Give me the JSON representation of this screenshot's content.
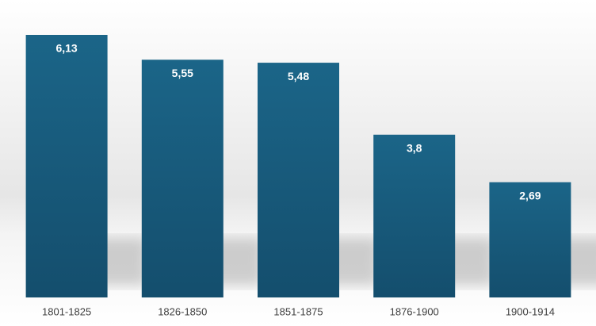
{
  "chart_data": {
    "type": "bar",
    "categories": [
      "1801-1825",
      "1826-1850",
      "1851-1875",
      "1876-1900",
      "1900-1914"
    ],
    "values": [
      6.13,
      5.55,
      5.48,
      3.8,
      2.69
    ],
    "value_labels": [
      "6,13",
      "5,55",
      "5,48",
      "3,8",
      "2,69"
    ],
    "color": "#1a6285"
  }
}
